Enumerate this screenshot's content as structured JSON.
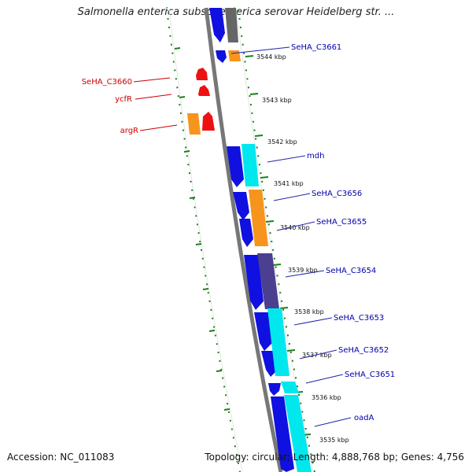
{
  "title": "Salmonella enterica subsp. enterica serovar Heidelberg str. ...",
  "accession": "Accession: NC_011083",
  "topology": "Topology: circular; Length: 4,888,768 bp; Genes: 4,756",
  "colors": {
    "forward_gene": "#1010e0",
    "cyan_gene": "#00e8ee",
    "orange_gene": "#f7941d",
    "purple_gene": "#4b3f8f",
    "gray_gene": "#666666",
    "red_gene": "#ee1111",
    "tick_green": "#1a7f1a",
    "backbone": "#777777",
    "label_blue": "#0000aa",
    "label_red": "#cc0000"
  },
  "scale_labels": [
    "3544 kbp",
    "3543 kbp",
    "3542 kbp",
    "3541 kbp",
    "3540 kbp",
    "3539 kbp",
    "3538 kbp",
    "3537 kbp",
    "3536 kbp",
    "3535 kbp"
  ],
  "right_labels": [
    "SeHA_C3661",
    "mdh",
    "SeHA_C3656",
    "SeHA_C3655",
    "SeHA_C3654",
    "SeHA_C3653",
    "SeHA_C3652",
    "SeHA_C3651",
    "oadA"
  ],
  "left_labels": [
    "SeHA_C3660",
    "ycfR",
    "argR"
  ]
}
